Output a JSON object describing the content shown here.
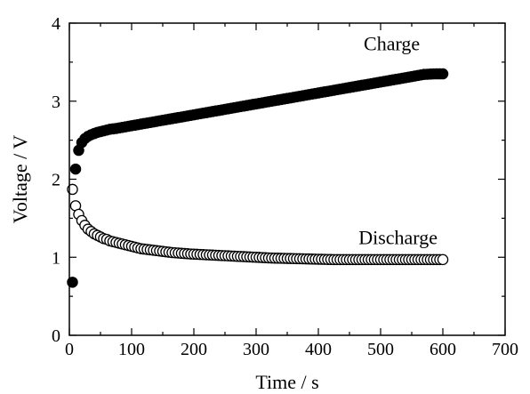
{
  "chart_data": {
    "type": "scatter",
    "xlabel": "Time / s",
    "ylabel": "Voltage / V",
    "xlim": [
      0,
      700
    ],
    "ylim": [
      0,
      4
    ],
    "xticks": [
      "0",
      "100",
      "200",
      "300",
      "400",
      "500",
      "600",
      "700"
    ],
    "yticks": [
      "0",
      "1",
      "2",
      "3",
      "4"
    ],
    "grid": false,
    "series": [
      {
        "name": "Charge",
        "marker": "filled-circle",
        "color": "#000000",
        "x": [
          5,
          10,
          15,
          20,
          25,
          30,
          35,
          40,
          45,
          50,
          55,
          60,
          65,
          70,
          75,
          80,
          85,
          90,
          95,
          100,
          105,
          110,
          115,
          120,
          125,
          130,
          135,
          140,
          145,
          150,
          155,
          160,
          165,
          170,
          175,
          180,
          185,
          190,
          195,
          200,
          205,
          210,
          215,
          220,
          225,
          230,
          235,
          240,
          245,
          250,
          255,
          260,
          265,
          270,
          275,
          280,
          285,
          290,
          295,
          300,
          305,
          310,
          315,
          320,
          325,
          330,
          335,
          340,
          345,
          350,
          355,
          360,
          365,
          370,
          375,
          380,
          385,
          390,
          395,
          400,
          405,
          410,
          415,
          420,
          425,
          430,
          435,
          440,
          445,
          450,
          455,
          460,
          465,
          470,
          475,
          480,
          485,
          490,
          495,
          500,
          505,
          510,
          515,
          520,
          525,
          530,
          535,
          540,
          545,
          550,
          555,
          560,
          565,
          570,
          575,
          580,
          585,
          590,
          595,
          600
        ],
        "y": [
          0.68,
          2.13,
          2.37,
          2.47,
          2.52,
          2.55,
          2.57,
          2.585,
          2.6,
          2.61,
          2.62,
          2.63,
          2.64,
          2.645,
          2.65,
          2.657,
          2.664,
          2.671,
          2.678,
          2.685,
          2.692,
          2.699,
          2.706,
          2.713,
          2.72,
          2.727,
          2.734,
          2.741,
          2.748,
          2.755,
          2.762,
          2.769,
          2.776,
          2.783,
          2.79,
          2.797,
          2.804,
          2.811,
          2.818,
          2.825,
          2.832,
          2.839,
          2.846,
          2.853,
          2.86,
          2.867,
          2.874,
          2.881,
          2.888,
          2.895,
          2.902,
          2.909,
          2.916,
          2.923,
          2.93,
          2.937,
          2.944,
          2.951,
          2.958,
          2.965,
          2.972,
          2.979,
          2.986,
          2.993,
          3.0,
          3.007,
          3.014,
          3.021,
          3.028,
          3.035,
          3.042,
          3.049,
          3.056,
          3.063,
          3.07,
          3.077,
          3.084,
          3.091,
          3.098,
          3.105,
          3.112,
          3.119,
          3.126,
          3.133,
          3.14,
          3.147,
          3.154,
          3.161,
          3.168,
          3.175,
          3.182,
          3.189,
          3.196,
          3.203,
          3.21,
          3.217,
          3.224,
          3.231,
          3.238,
          3.245,
          3.252,
          3.259,
          3.266,
          3.273,
          3.28,
          3.287,
          3.294,
          3.301,
          3.308,
          3.315,
          3.322,
          3.329,
          3.336,
          3.343,
          3.345,
          3.347,
          3.349,
          3.35,
          3.35,
          3.35
        ]
      },
      {
        "name": "Discharge",
        "marker": "open-circle",
        "color": "#000000",
        "x": [
          5,
          10,
          15,
          20,
          25,
          30,
          35,
          40,
          45,
          50,
          55,
          60,
          65,
          70,
          75,
          80,
          85,
          90,
          95,
          100,
          105,
          110,
          115,
          120,
          125,
          130,
          135,
          140,
          145,
          150,
          155,
          160,
          165,
          170,
          175,
          180,
          185,
          190,
          195,
          200,
          205,
          210,
          215,
          220,
          225,
          230,
          235,
          240,
          245,
          250,
          255,
          260,
          265,
          270,
          275,
          280,
          285,
          290,
          295,
          300,
          305,
          310,
          315,
          320,
          325,
          330,
          335,
          340,
          345,
          350,
          355,
          360,
          365,
          370,
          375,
          380,
          385,
          390,
          395,
          400,
          405,
          410,
          415,
          420,
          425,
          430,
          435,
          440,
          445,
          450,
          455,
          460,
          465,
          470,
          475,
          480,
          485,
          490,
          495,
          500,
          505,
          510,
          515,
          520,
          525,
          530,
          535,
          540,
          545,
          550,
          555,
          560,
          565,
          570,
          575,
          580,
          585,
          590,
          595,
          600
        ],
        "y": [
          1.87,
          1.66,
          1.55,
          1.47,
          1.41,
          1.36,
          1.33,
          1.3,
          1.28,
          1.26,
          1.24,
          1.23,
          1.21,
          1.2,
          1.19,
          1.18,
          1.17,
          1.16,
          1.15,
          1.14,
          1.13,
          1.12,
          1.11,
          1.105,
          1.1,
          1.095,
          1.09,
          1.085,
          1.08,
          1.075,
          1.07,
          1.065,
          1.06,
          1.057,
          1.054,
          1.051,
          1.048,
          1.045,
          1.042,
          1.04,
          1.038,
          1.036,
          1.034,
          1.032,
          1.03,
          1.028,
          1.026,
          1.024,
          1.022,
          1.02,
          1.018,
          1.016,
          1.014,
          1.012,
          1.01,
          1.008,
          1.006,
          1.004,
          1.002,
          1.0,
          0.998,
          0.996,
          0.994,
          0.992,
          0.99,
          0.989,
          0.988,
          0.987,
          0.986,
          0.985,
          0.984,
          0.983,
          0.982,
          0.981,
          0.98,
          0.979,
          0.978,
          0.977,
          0.976,
          0.975,
          0.974,
          0.973,
          0.972,
          0.971,
          0.97,
          0.97,
          0.97,
          0.97,
          0.97,
          0.97,
          0.97,
          0.97,
          0.97,
          0.97,
          0.97,
          0.97,
          0.97,
          0.97,
          0.97,
          0.97,
          0.97,
          0.97,
          0.97,
          0.97,
          0.97,
          0.97,
          0.97,
          0.97,
          0.97,
          0.97,
          0.97,
          0.97,
          0.97,
          0.97,
          0.97,
          0.97,
          0.97,
          0.97,
          0.97,
          0.97
        ]
      }
    ]
  }
}
